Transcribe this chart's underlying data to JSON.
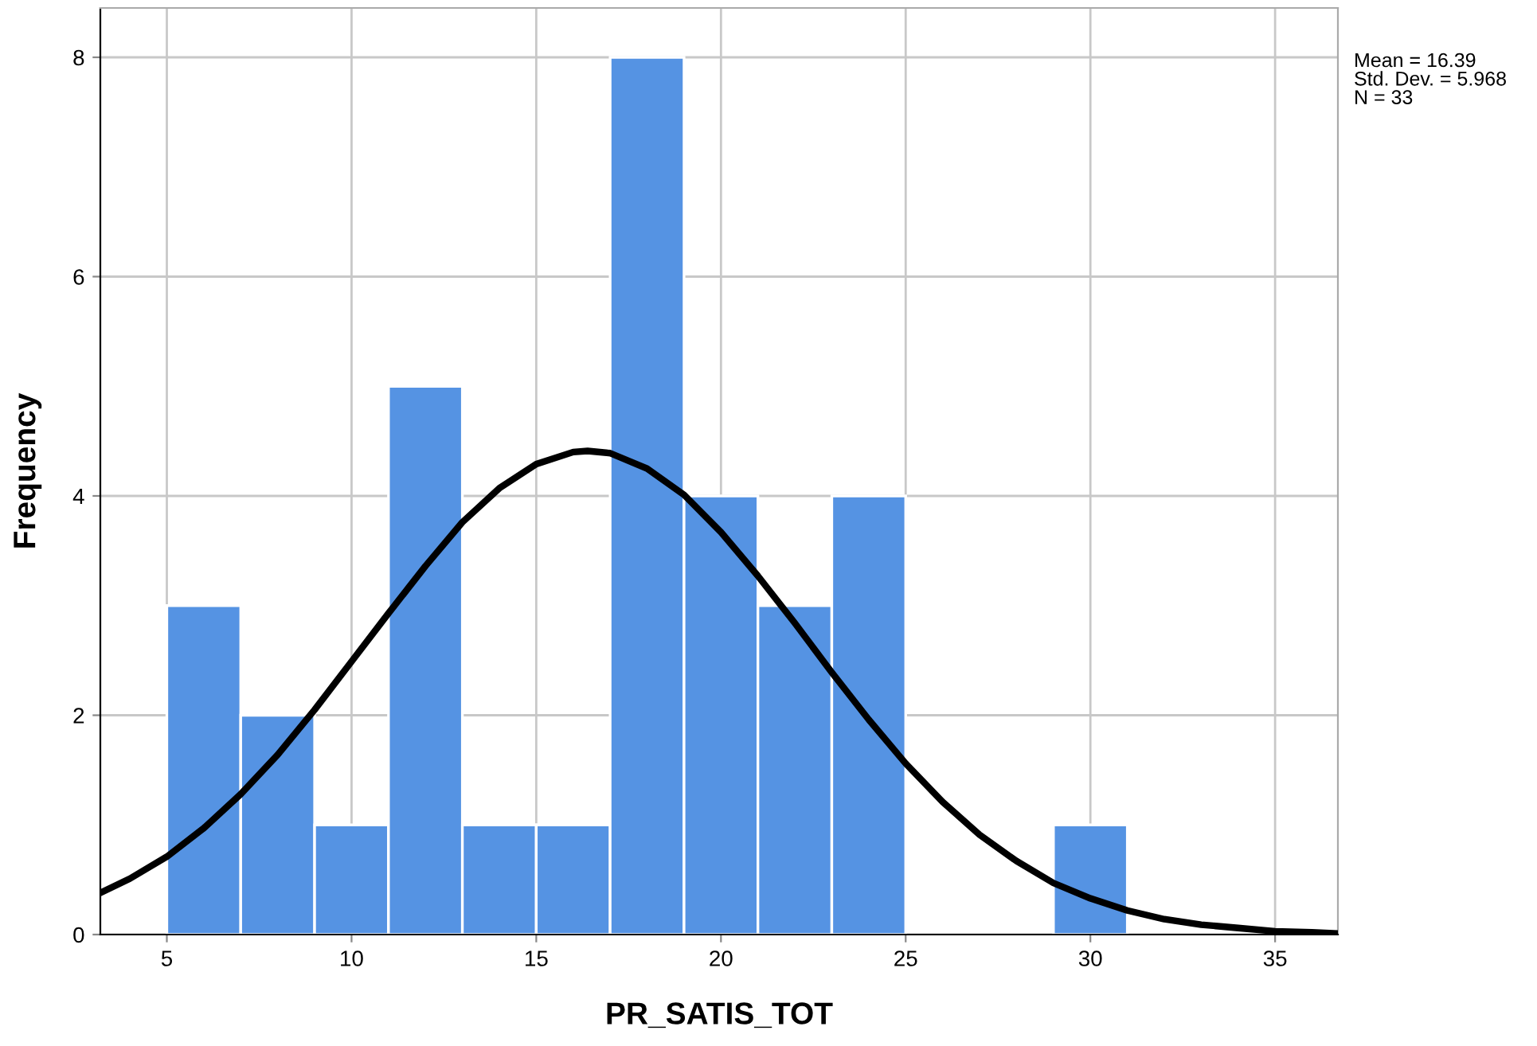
{
  "chart_data": {
    "type": "histogram",
    "xlabel": "PR_SATIS_TOT",
    "ylabel": "Frequency",
    "bins": [
      5,
      7,
      9,
      11,
      13,
      15,
      17,
      19,
      21,
      23,
      25,
      27,
      29,
      31
    ],
    "values": [
      3,
      2,
      1,
      5,
      1,
      1,
      8,
      4,
      3,
      4,
      0,
      0,
      1
    ],
    "color": "#5593e3",
    "series": [
      {
        "type": "line",
        "color": "#000000",
        "x": [
          3.2,
          4,
          5,
          6,
          7,
          8,
          9,
          10,
          11,
          12,
          13,
          14,
          15,
          16,
          16.39,
          17,
          18,
          19,
          20,
          21,
          22,
          23,
          24,
          25,
          26,
          27,
          28,
          29,
          30,
          31,
          32,
          33,
          34,
          35,
          36,
          36.7
        ],
        "values": [
          0.38,
          0.51,
          0.71,
          0.97,
          1.28,
          1.64,
          2.05,
          2.49,
          2.93,
          3.36,
          3.76,
          4.07,
          4.29,
          4.4,
          4.41,
          4.39,
          4.25,
          4.01,
          3.67,
          3.27,
          2.84,
          2.39,
          1.96,
          1.56,
          1.21,
          0.91,
          0.67,
          0.47,
          0.33,
          0.22,
          0.14,
          0.09,
          0.06,
          0.03,
          0.02,
          0.01
        ]
      }
    ],
    "xlim": [
      3.2,
      36.7
    ],
    "xticks": [
      5,
      10,
      15,
      20,
      25,
      30,
      35
    ],
    "ylim": [
      0,
      8.45
    ],
    "yticks": [
      0,
      2,
      4,
      6,
      8
    ],
    "grid": true,
    "annotations": [
      "Mean = 16.39\nStd. Dev. = 5.968\nN = 33"
    ]
  }
}
